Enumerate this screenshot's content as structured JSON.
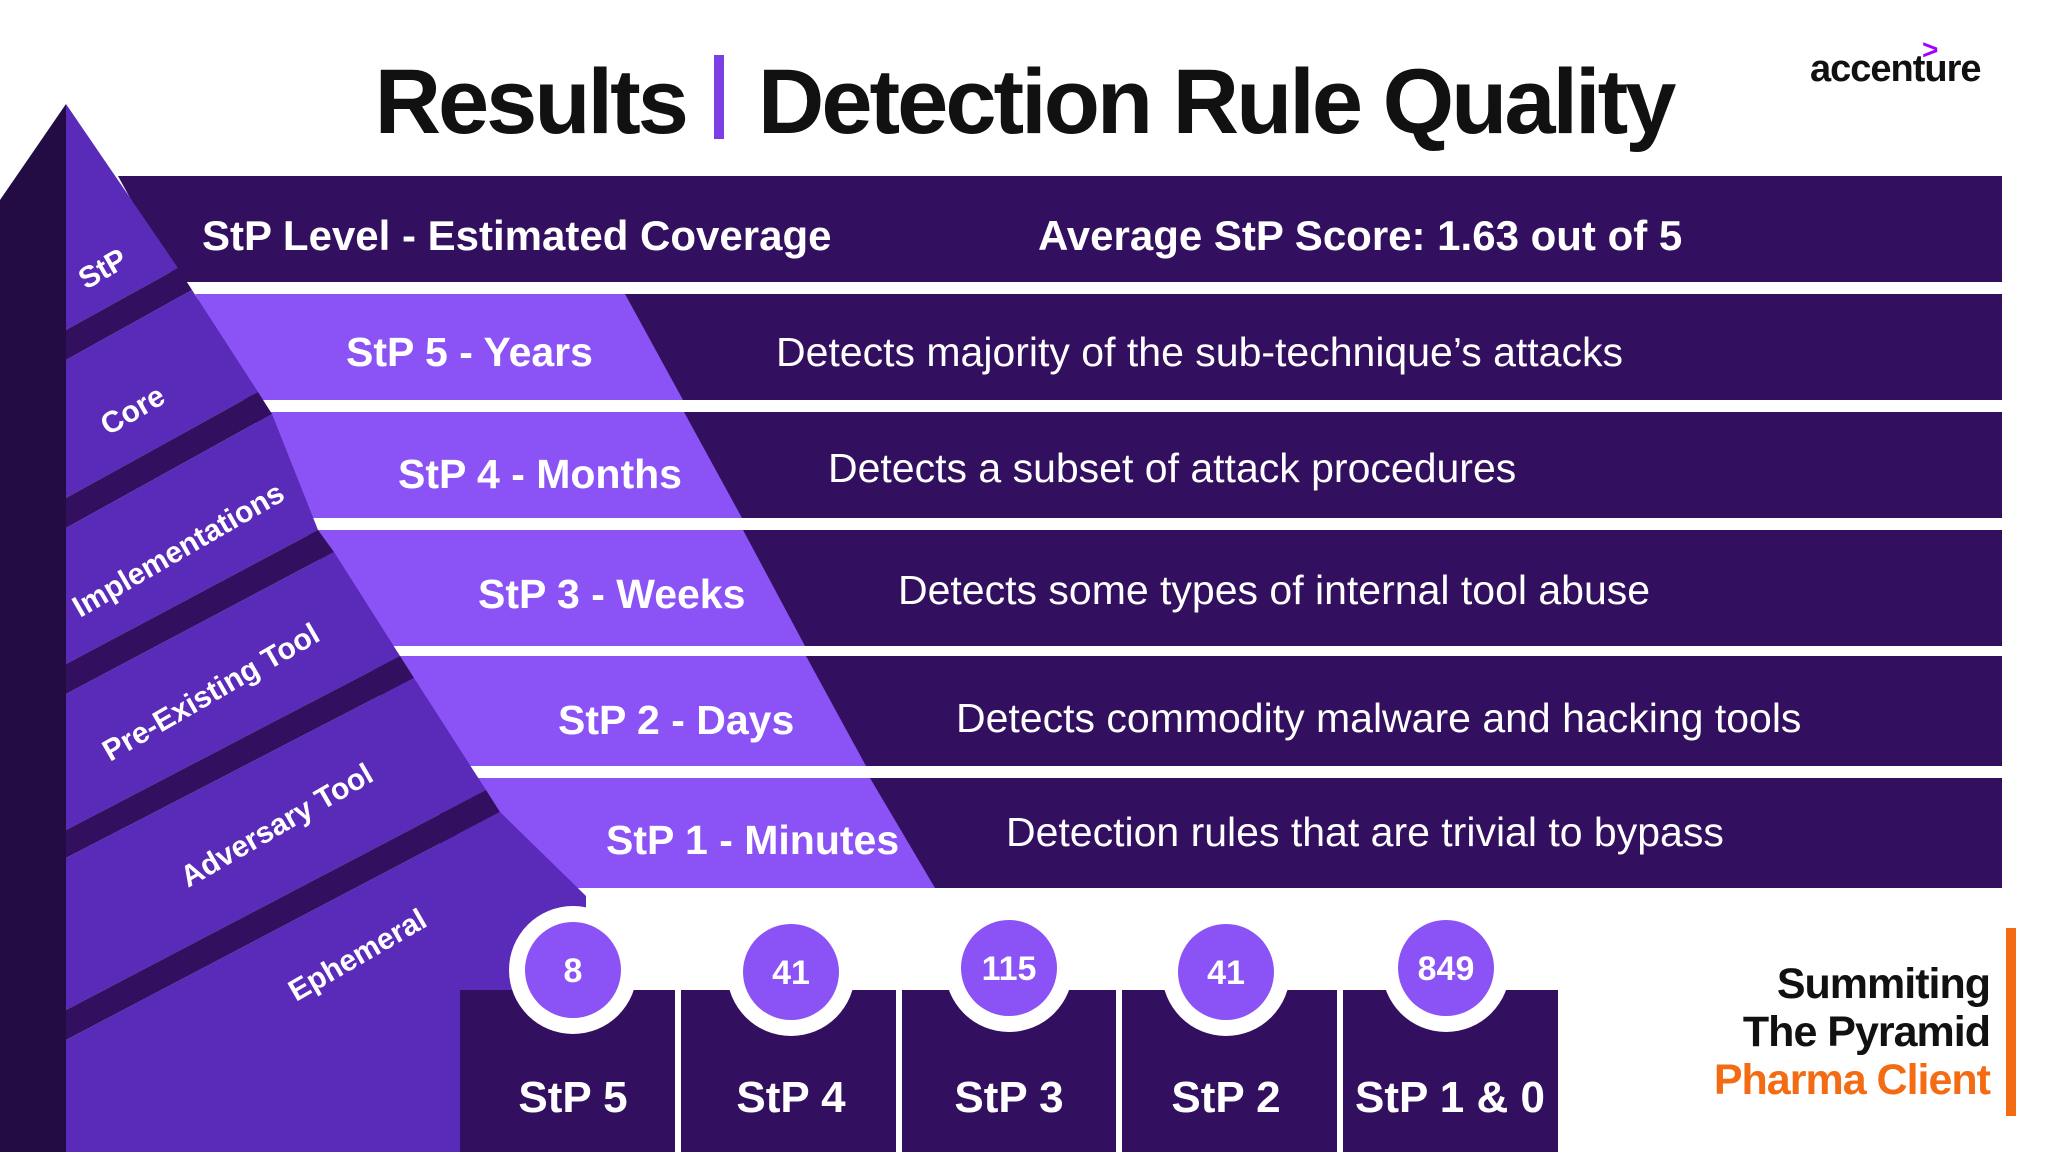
{
  "header": {
    "title_left": "Results",
    "title_right": "Detection Rule Quality",
    "logo": "accenture"
  },
  "table_header": {
    "left": "StP Level - Estimated Coverage",
    "right": "Average StP Score: 1.63 out of 5"
  },
  "levels": [
    {
      "label": "StP 5 - Years",
      "description": "Detects majority of the sub-technique’s attacks"
    },
    {
      "label": "StP 4 - Months",
      "description": "Detects a subset of attack procedures"
    },
    {
      "label": "StP 3 - Weeks",
      "description": "Detects some types of internal tool abuse"
    },
    {
      "label": "StP 2 - Days",
      "description": "Detects commodity malware and hacking tools"
    },
    {
      "label": "StP 1 - Minutes",
      "description": "Detection rules that are trivial to bypass"
    }
  ],
  "pyramid_layers": [
    "StP",
    "Core",
    "Implementations",
    "Pre-Existing Tool",
    "Adversary Tool",
    "Ephemeral"
  ],
  "counts": [
    {
      "value": "8",
      "label": "StP 5"
    },
    {
      "value": "41",
      "label": "StP 4"
    },
    {
      "value": "115",
      "label": "StP 3"
    },
    {
      "value": "41",
      "label": "StP 2"
    },
    {
      "value": "849",
      "label": "StP 1 & 0"
    }
  ],
  "footer": {
    "line1": "Summiting",
    "line2": "The Pyramid",
    "line3": "Pharma Client"
  },
  "colors": {
    "dark_purple": "#33105f",
    "mid_purple": "#5a2ab8",
    "light_purple": "#8b52f5",
    "pyramid_shadow": "#230c43",
    "accent_orange": "#f36b13"
  }
}
